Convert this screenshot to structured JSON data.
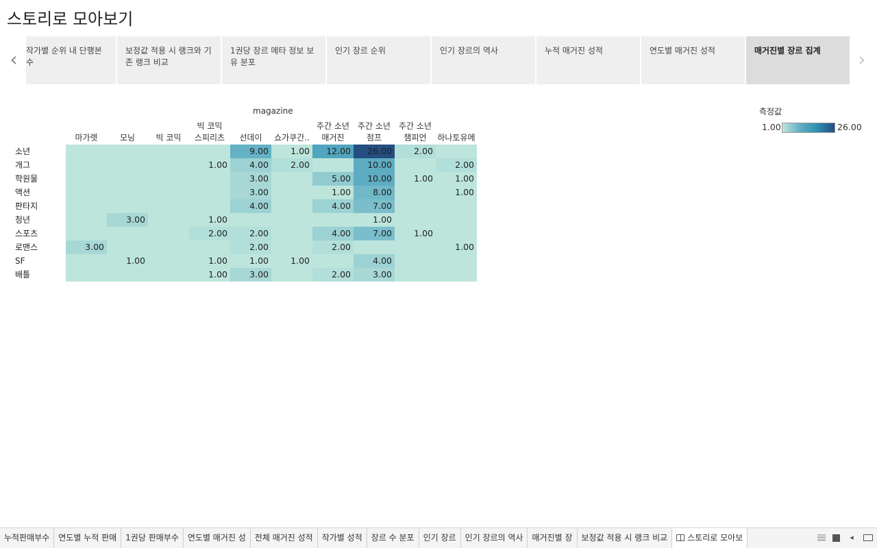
{
  "title": "스토리로 모아보기",
  "story_points": [
    "작가별 순위 내 단행본 수",
    "보정값 적용 시 랭크와 기존 랭크 비교",
    "1권당 장르 메타 정보 보유 분포",
    "인기 장르 순위",
    "인기 장르의 역사",
    "누적 매거진 성적",
    "연도별 매거진 성적",
    "매거진별 장르 집계"
  ],
  "nav": {
    "prev_icon": "chevron-left-icon",
    "next_icon": "chevron-right-icon"
  },
  "chart_data": {
    "type": "heatmap",
    "x_title": "magazine",
    "columns": [
      "마가렛",
      "모닝",
      "빅 코믹",
      "빅 코믹\n스피리츠",
      "선데이",
      "쇼가쿠간..",
      "주간 소년\n매거진",
      "주간 소년\n점프",
      "주간 소년\n챔피언",
      "하나토유메"
    ],
    "rows": [
      "소년",
      "개그",
      "학원물",
      "액션",
      "판타지",
      "청년",
      "스포츠",
      "로맨스",
      "SF",
      "배틀"
    ],
    "values": [
      [
        null,
        null,
        null,
        null,
        9.0,
        1.0,
        12.0,
        26.0,
        2.0,
        null
      ],
      [
        null,
        null,
        null,
        1.0,
        4.0,
        2.0,
        null,
        10.0,
        null,
        2.0
      ],
      [
        null,
        null,
        null,
        null,
        3.0,
        null,
        5.0,
        10.0,
        1.0,
        1.0
      ],
      [
        null,
        null,
        null,
        null,
        3.0,
        null,
        1.0,
        8.0,
        null,
        1.0
      ],
      [
        null,
        null,
        null,
        null,
        4.0,
        null,
        4.0,
        7.0,
        null,
        null
      ],
      [
        null,
        3.0,
        null,
        1.0,
        null,
        null,
        null,
        1.0,
        null,
        null
      ],
      [
        null,
        null,
        null,
        2.0,
        2.0,
        null,
        4.0,
        7.0,
        1.0,
        null
      ],
      [
        3.0,
        null,
        null,
        null,
        2.0,
        null,
        2.0,
        null,
        null,
        1.0
      ],
      [
        null,
        1.0,
        null,
        1.0,
        1.0,
        1.0,
        null,
        4.0,
        null,
        null
      ],
      [
        null,
        null,
        null,
        1.0,
        3.0,
        null,
        2.0,
        3.0,
        null,
        null
      ]
    ],
    "legend": {
      "title": "측정값",
      "min": "1.00",
      "max": "26.00",
      "min_value": 1,
      "max_value": 26
    },
    "colors": [
      "#bde5dc",
      "#61afc4",
      "#2f8fb0",
      "#244d80"
    ]
  },
  "tabs": [
    "누적판매부수",
    "연도별 누적 판매",
    "1권당 판매부수",
    "연도별 매거진 성",
    "전체 매거진 성적",
    "작가별 성적",
    "장르 수 분포",
    "인기 장르",
    "인기 장르의 역사",
    "매거진별 장",
    "보정값 적용 시 랭크 비교",
    "스토리로 모아보"
  ],
  "active_tab": 11,
  "tab_controls": [
    "grid-view-icon",
    "filmstrip-icon",
    "scroll-left-icon",
    "presentation-icon"
  ]
}
